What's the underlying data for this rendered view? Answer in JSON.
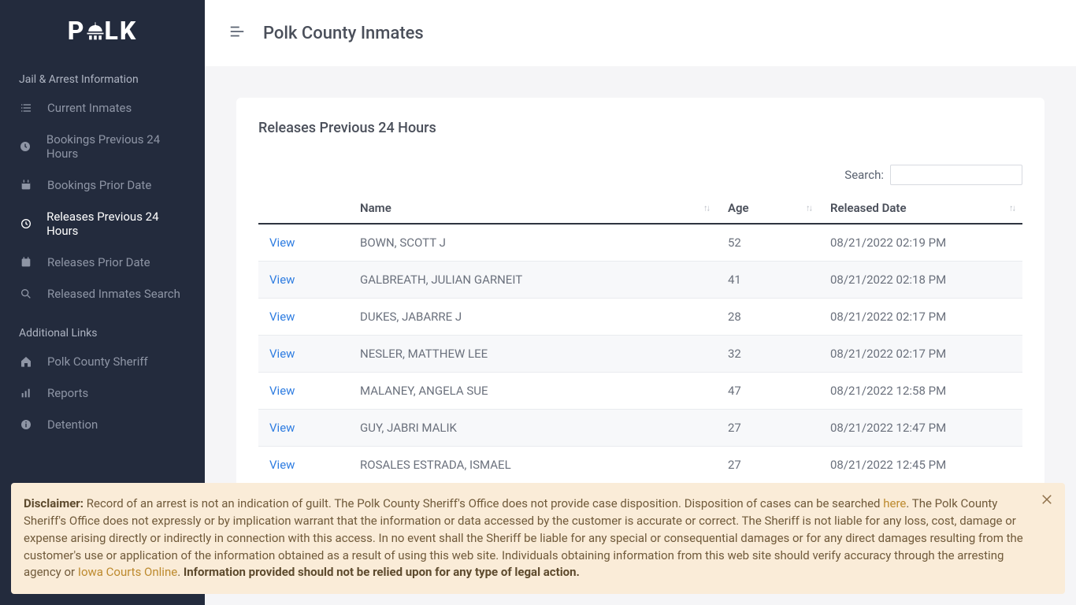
{
  "brand": {
    "name_left": "P",
    "name_right": "LK"
  },
  "sidebar": {
    "section1_label": "Jail & Arrest Information",
    "items1": [
      {
        "label": "Current Inmates"
      },
      {
        "label": "Bookings Previous 24 Hours"
      },
      {
        "label": "Bookings Prior Date"
      },
      {
        "label": "Releases Previous 24 Hours"
      },
      {
        "label": "Releases Prior Date"
      },
      {
        "label": "Released Inmates Search"
      }
    ],
    "section2_label": "Additional Links",
    "items2": [
      {
        "label": "Polk County Sheriff"
      },
      {
        "label": "Reports"
      },
      {
        "label": "Detention"
      }
    ]
  },
  "header": {
    "title": "Polk County Inmates"
  },
  "card": {
    "title": "Releases Previous 24 Hours",
    "search_label": "Search:",
    "columns": {
      "view": "",
      "name": "Name",
      "age": "Age",
      "released": "Released Date"
    },
    "view_label": "View",
    "rows": [
      {
        "name": "BOWN, SCOTT J",
        "age": "52",
        "released": "08/21/2022 02:19 PM"
      },
      {
        "name": "GALBREATH, JULIAN GARNEIT",
        "age": "41",
        "released": "08/21/2022 02:18 PM"
      },
      {
        "name": "DUKES, JABARRE J",
        "age": "28",
        "released": "08/21/2022 02:17 PM"
      },
      {
        "name": "NESLER, MATTHEW LEE",
        "age": "32",
        "released": "08/21/2022 02:17 PM"
      },
      {
        "name": "MALANEY, ANGELA SUE",
        "age": "47",
        "released": "08/21/2022 12:58 PM"
      },
      {
        "name": "GUY, JABRI MALIK",
        "age": "27",
        "released": "08/21/2022 12:47 PM"
      },
      {
        "name": "ROSALES ESTRADA, ISMAEL",
        "age": "27",
        "released": "08/21/2022 12:45 PM"
      }
    ]
  },
  "disclaimer": {
    "label": "Disclaimer:",
    "part1": " Record of an arrest is not an indication of guilt. The Polk County Sheriff's Office does not provide case disposition. Disposition of cases can be searched ",
    "link1": "here",
    "part2": ". The Polk County Sheriff's Office does not expressly or by implication warrant that the information or data accessed by the customer is accurate or correct. The Sheriff is not liable for any loss, cost, damage or expense arising directly or indirectly in connection with this access. In no event shall the Sheriff be liable for any special or consequential damages or for any direct damages resulting from the customer's use or application of the information obtained as a result of using this web site. Individuals obtaining information from this web site should verify accuracy through the arresting agency or ",
    "link2": "Iowa Courts Online",
    "part3": ". ",
    "bold_tail": "Information provided should not be relied upon for any type of legal action."
  },
  "colors": {
    "sidebar_bg": "#232b3d",
    "link": "#2f7de1",
    "disclaimer_bg": "#faecd8"
  }
}
